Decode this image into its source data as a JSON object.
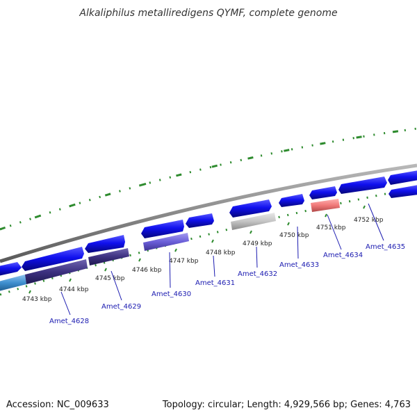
{
  "title": "Alkaliphilus metalliredigens QYMF, complete genome",
  "footer": {
    "accession": "Accession: NC_009633",
    "summary": "Topology: circular; Length: 4,929,566 bp; Genes: 4,763"
  },
  "colors": {
    "backbone": "#8a8a8a",
    "forward_cds": "#1010ee",
    "forward_cds_dark": "#06067a",
    "rrna_like": "#3a2f7a",
    "gc_skew_ticks": "#2e8b2e",
    "label_blue": "#1a1ab0"
  },
  "ticks": [
    {
      "label": "4743 kbp"
    },
    {
      "label": "4744 kbp"
    },
    {
      "label": "4745 kbp"
    },
    {
      "label": "4746 kbp"
    },
    {
      "label": "4747 kbp"
    },
    {
      "label": "4748 kbp"
    },
    {
      "label": "4749 kbp"
    },
    {
      "label": "4750 kbp"
    },
    {
      "label": "4751 kbp"
    },
    {
      "label": "4752 kbp"
    }
  ],
  "gene_labels": [
    {
      "label": "Amet_4628"
    },
    {
      "label": "Amet_4629"
    },
    {
      "label": "Amet_4630"
    },
    {
      "label": "Amet_4631"
    },
    {
      "label": "Amet_4632"
    },
    {
      "label": "Amet_4633"
    },
    {
      "label": "Amet_4634"
    },
    {
      "label": "Amet_4635"
    }
  ],
  "features": [
    {
      "track": "outer",
      "color": "blue"
    },
    {
      "track": "outer",
      "color": "blue"
    },
    {
      "track": "outer",
      "color": "blue"
    },
    {
      "track": "outer",
      "color": "blue"
    },
    {
      "track": "outer",
      "color": "blue"
    },
    {
      "track": "outer",
      "color": "blue"
    },
    {
      "track": "outer",
      "color": "blue"
    },
    {
      "track": "outer",
      "color": "blue"
    },
    {
      "track": "outer",
      "color": "blue"
    },
    {
      "track": "outer",
      "color": "blue"
    },
    {
      "track": "inner",
      "color": "steelblue"
    },
    {
      "track": "inner",
      "color": "darkslate"
    },
    {
      "track": "inner",
      "color": "darkslate"
    },
    {
      "track": "inner",
      "color": "slateblue"
    },
    {
      "track": "inner",
      "color": "silver"
    },
    {
      "track": "inner",
      "color": "salmon"
    },
    {
      "track": "inner",
      "color": "blue"
    }
  ]
}
